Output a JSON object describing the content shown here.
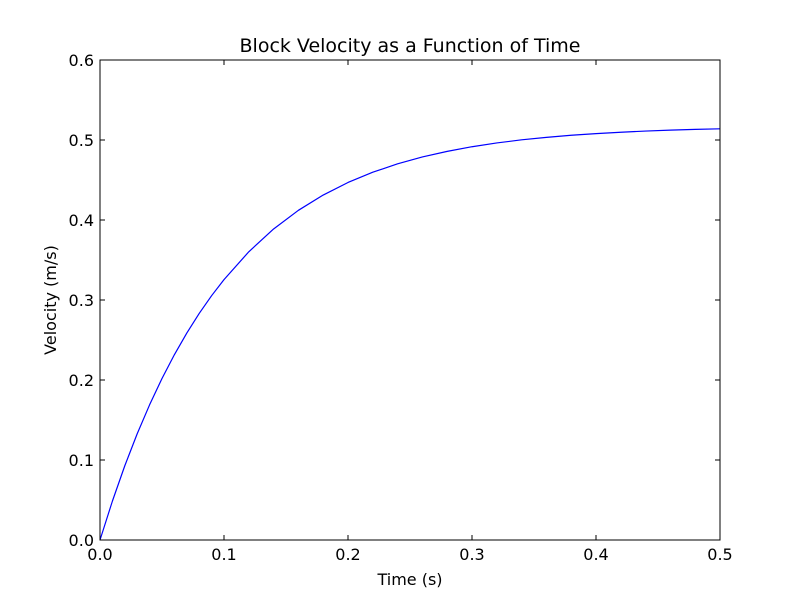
{
  "chart_data": {
    "type": "line",
    "title": "Block Velocity as a Function of Time",
    "xlabel": "Time (s)",
    "ylabel": "Velocity (m/s)",
    "xlim": [
      0.0,
      0.5
    ],
    "ylim": [
      0.0,
      0.6
    ],
    "x_ticks": [
      "0.0",
      "0.1",
      "0.2",
      "0.3",
      "0.4",
      "0.5"
    ],
    "y_ticks": [
      "0.0",
      "0.1",
      "0.2",
      "0.3",
      "0.4",
      "0.5",
      "0.6"
    ],
    "grid": false,
    "colors": {
      "series": "#0000ff",
      "axes": "#000000",
      "background": "#ffffff"
    },
    "series": [
      {
        "x": [
          0.0,
          0.01,
          0.02,
          0.03,
          0.04,
          0.05,
          0.06,
          0.07,
          0.08,
          0.09,
          0.1,
          0.12,
          0.14,
          0.16,
          0.18,
          0.2,
          0.22,
          0.24,
          0.26,
          0.28,
          0.3,
          0.32,
          0.34,
          0.36,
          0.38,
          0.4,
          0.42,
          0.44,
          0.46,
          0.48,
          0.5
        ],
        "y": [
          0.0,
          0.0486,
          0.0928,
          0.1328,
          0.169,
          0.2019,
          0.2317,
          0.2587,
          0.2832,
          0.3054,
          0.3255,
          0.3603,
          0.3888,
          0.4121,
          0.4312,
          0.4469,
          0.4597,
          0.4702,
          0.4788,
          0.4858,
          0.4916,
          0.4963,
          0.5002,
          0.5033,
          0.5059,
          0.508,
          0.5097,
          0.5112,
          0.5123,
          0.5133,
          0.514
        ]
      }
    ]
  }
}
